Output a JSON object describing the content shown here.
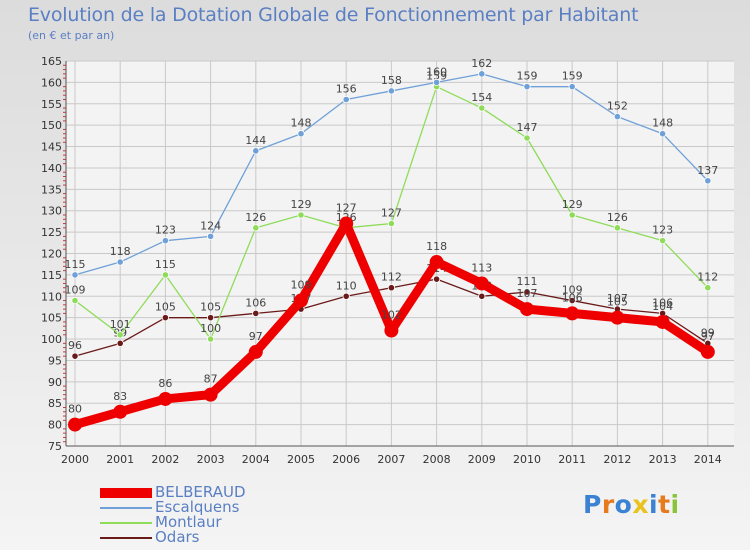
{
  "header": {
    "title": "Evolution de la Dotation Globale de Fonctionnement par Habitant",
    "subtitle": "(en € et par an)"
  },
  "chart_data": {
    "type": "line",
    "title": "Evolution de la Dotation Globale de Fonctionnement par Habitant",
    "subtitle": "(en € et par an)",
    "xlabel": "",
    "ylabel": "",
    "ylim": [
      75,
      165
    ],
    "ytick_step": 5,
    "grid": true,
    "legend_position": "bottom-left",
    "categories": [
      "2000",
      "2001",
      "2002",
      "2003",
      "2004",
      "2005",
      "2006",
      "2007",
      "2008",
      "2009",
      "2010",
      "2011",
      "2012",
      "2013",
      "2014"
    ],
    "series": [
      {
        "name": "Odars",
        "color": "#6b1a1a",
        "values": [
          96,
          99,
          105,
          105,
          106,
          107,
          110,
          112,
          114,
          110,
          111,
          109,
          107,
          106,
          99
        ]
      },
      {
        "name": "Montlaur",
        "color": "#8fdc5a",
        "values": [
          109,
          101,
          115,
          100,
          126,
          129,
          126,
          127,
          159,
          154,
          147,
          129,
          126,
          123,
          112
        ]
      },
      {
        "name": "Escalquens",
        "color": "#6fa0d8",
        "values": [
          115,
          118,
          123,
          124,
          144,
          148,
          156,
          158,
          160,
          162,
          159,
          159,
          152,
          148,
          137
        ]
      },
      {
        "name": "BELBERAUD",
        "color": "#ee0000",
        "values": [
          80,
          83,
          86,
          87,
          97,
          109,
          127,
          102,
          118,
          113,
          107,
          106,
          105,
          104,
          97
        ]
      }
    ],
    "legend_order": [
      "BELBERAUD",
      "Escalquens",
      "Montlaur",
      "Odars"
    ]
  },
  "logo": {
    "letters": [
      "P",
      "r",
      "o",
      "x",
      "i",
      "t",
      "i"
    ],
    "colors": [
      "#3c82d2",
      "#e87a1e",
      "#3c82d2",
      "#e8c21e",
      "#3c82d2",
      "#e87a1e",
      "#8ac43c"
    ]
  }
}
